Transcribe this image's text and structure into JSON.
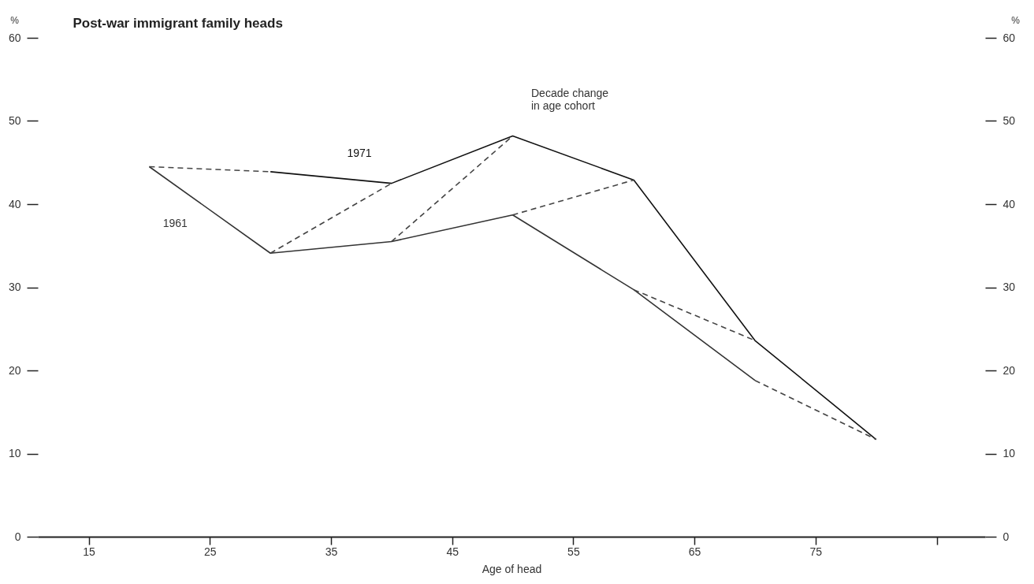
{
  "chart_data": {
    "type": "line",
    "title": "Post-war immigrant family heads",
    "xlabel": "Age of head",
    "ylabel": "%",
    "y2label": "%",
    "xlim": [
      10.8,
      89
    ],
    "xticks": [
      15,
      25,
      35,
      45,
      55,
      65,
      75,
      {
        "value": 85,
        "label": null
      }
    ],
    "ylim": [
      0,
      60
    ],
    "yticks": [
      0,
      10,
      20,
      30,
      40,
      50,
      60
    ],
    "y2lim": [
      0,
      60
    ],
    "y2ticks": [
      0,
      10,
      20,
      30,
      40,
      50,
      60
    ],
    "line_style": "solid",
    "series": [
      {
        "name": "1961",
        "color": "#333333",
        "x": [
          20,
          30,
          40,
          50,
          60,
          70
        ],
        "values": [
          44.5,
          34.1,
          35.5,
          38.7,
          29.7,
          18.8
        ]
      },
      {
        "name": "1971",
        "color": "#111111",
        "x": [
          30,
          40,
          50,
          60,
          70,
          80
        ],
        "values": [
          43.9,
          42.5,
          48.2,
          42.9,
          23.6,
          11.7
        ]
      },
      {
        "color": "#444444",
        "line_style": "dashed",
        "x": [
          20,
          30
        ],
        "values": [
          44.5,
          43.9
        ]
      },
      {
        "color": "#444444",
        "line_style": "dashed",
        "x": [
          30,
          40
        ],
        "values": [
          34.1,
          42.5
        ]
      },
      {
        "color": "#444444",
        "line_style": "dashed",
        "x": [
          40,
          50
        ],
        "values": [
          35.5,
          48.2
        ]
      },
      {
        "color": "#444444",
        "line_style": "dashed",
        "x": [
          50,
          60
        ],
        "values": [
          38.7,
          42.9
        ]
      },
      {
        "color": "#444444",
        "line_style": "dashed",
        "x": [
          60,
          70
        ],
        "values": [
          29.7,
          23.6
        ]
      },
      {
        "color": "#444444",
        "line_style": "dashed",
        "x": [
          70,
          80
        ],
        "values": [
          18.8,
          11.7
        ]
      }
    ],
    "annotations": [
      "Decade change\nin age cohort"
    ]
  }
}
